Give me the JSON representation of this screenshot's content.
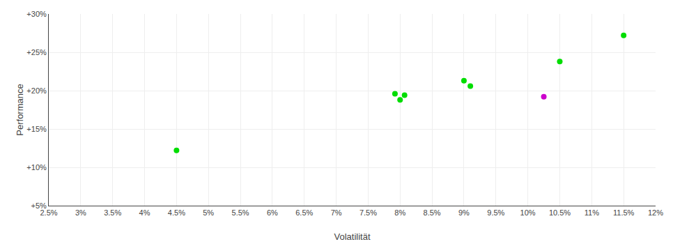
{
  "chart_data": {
    "type": "scatter",
    "x": [
      4.5,
      7.92,
      8.07,
      8.0,
      9.0,
      9.1,
      10.25,
      10.5,
      11.5
    ],
    "values": [
      12.2,
      19.6,
      19.4,
      18.8,
      21.3,
      20.6,
      19.2,
      23.8,
      27.2
    ],
    "colors": [
      "#00dd00",
      "#00dd00",
      "#00dd00",
      "#00dd00",
      "#00dd00",
      "#00dd00",
      "#cc00cc",
      "#00dd00",
      "#00dd00"
    ],
    "xlabel": "Volatilität",
    "ylabel": "Performance",
    "xlim": [
      2.5,
      12.0
    ],
    "ylim": [
      5.0,
      30.0
    ],
    "xticks": [
      {
        "value": 2.5,
        "label": "2.5%"
      },
      {
        "value": 3.0,
        "label": "3%"
      },
      {
        "value": 3.5,
        "label": "3.5%"
      },
      {
        "value": 4.0,
        "label": "4%"
      },
      {
        "value": 4.5,
        "label": "4.5%"
      },
      {
        "value": 5.0,
        "label": "5%"
      },
      {
        "value": 5.5,
        "label": "5.5%"
      },
      {
        "value": 6.0,
        "label": "6%"
      },
      {
        "value": 6.5,
        "label": "6.5%"
      },
      {
        "value": 7.0,
        "label": "7%"
      },
      {
        "value": 7.5,
        "label": "7.5%"
      },
      {
        "value": 8.0,
        "label": "8%"
      },
      {
        "value": 8.5,
        "label": "8.5%"
      },
      {
        "value": 9.0,
        "label": "9%"
      },
      {
        "value": 9.5,
        "label": "9.5%"
      },
      {
        "value": 10.0,
        "label": "10%"
      },
      {
        "value": 10.5,
        "label": "10.5%"
      },
      {
        "value": 11.0,
        "label": "11%"
      },
      {
        "value": 11.5,
        "label": "11.5%"
      },
      {
        "value": 12.0,
        "label": "12%"
      }
    ],
    "yticks": [
      {
        "value": 5.0,
        "label": "+5%"
      },
      {
        "value": 10.0,
        "label": "+10%"
      },
      {
        "value": 15.0,
        "label": "+15%"
      },
      {
        "value": 20.0,
        "label": "+20%"
      },
      {
        "value": 25.0,
        "label": "+25%"
      },
      {
        "value": 30.0,
        "label": "+30%"
      }
    ],
    "grid": true
  }
}
